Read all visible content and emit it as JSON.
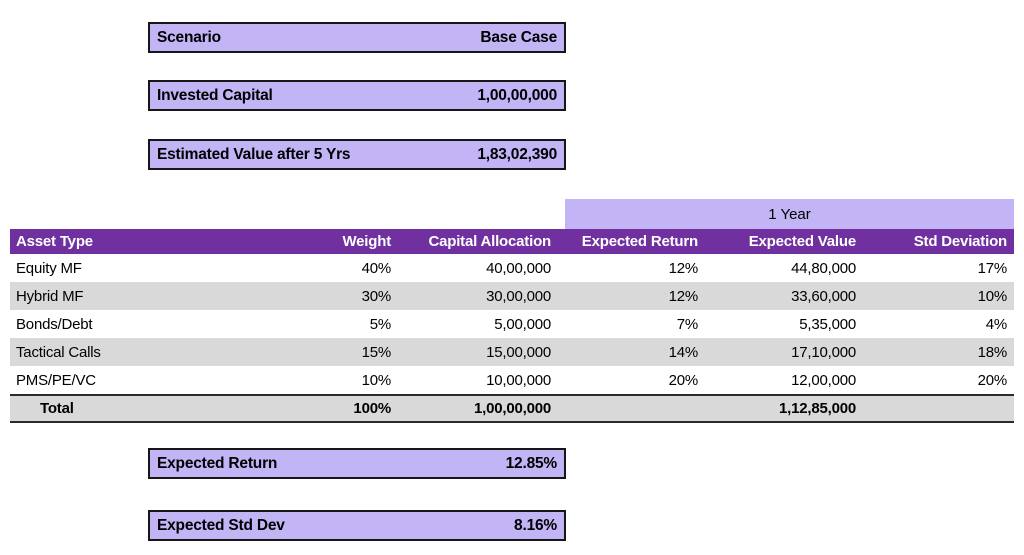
{
  "colors": {
    "header_purple": "#7030A0",
    "light_purple": "#C3B4F6",
    "alt_row_gray": "#D9D9D9",
    "header_text": "#FFFFFF"
  },
  "summary_boxes": {
    "scenario": {
      "label": "Scenario",
      "value": "Base Case"
    },
    "invested": {
      "label": "Invested Capital",
      "value": "1,00,00,000"
    },
    "estimated": {
      "label": "Estimated Value after 5 Yrs",
      "value": "1,83,02,390"
    },
    "expected_return": {
      "label": "Expected Return",
      "value": "12.85%"
    },
    "expected_stddev": {
      "label": "Expected Std Dev",
      "value": "8.16%"
    }
  },
  "table": {
    "group_header": "1 Year",
    "columns": [
      "Asset Type",
      "Weight",
      "Capital Allocation",
      "Expected Return",
      "Expected Value",
      "Std Deviation"
    ],
    "rows": [
      {
        "asset": "Equity MF",
        "weight": "40%",
        "capital": "40,00,000",
        "exp_return": "12%",
        "exp_value": "44,80,000",
        "std_dev": "17%"
      },
      {
        "asset": "Hybrid MF",
        "weight": "30%",
        "capital": "30,00,000",
        "exp_return": "12%",
        "exp_value": "33,60,000",
        "std_dev": "10%"
      },
      {
        "asset": "Bonds/Debt",
        "weight": "5%",
        "capital": "5,00,000",
        "exp_return": "7%",
        "exp_value": "5,35,000",
        "std_dev": "4%"
      },
      {
        "asset": "Tactical Calls",
        "weight": "15%",
        "capital": "15,00,000",
        "exp_return": "14%",
        "exp_value": "17,10,000",
        "std_dev": "18%"
      },
      {
        "asset": "PMS/PE/VC",
        "weight": "10%",
        "capital": "10,00,000",
        "exp_return": "20%",
        "exp_value": "12,00,000",
        "std_dev": "20%"
      }
    ],
    "total": {
      "asset": "Total",
      "weight": "100%",
      "capital": "1,00,00,000",
      "exp_return": "",
      "exp_value": "1,12,85,000",
      "std_dev": ""
    }
  }
}
